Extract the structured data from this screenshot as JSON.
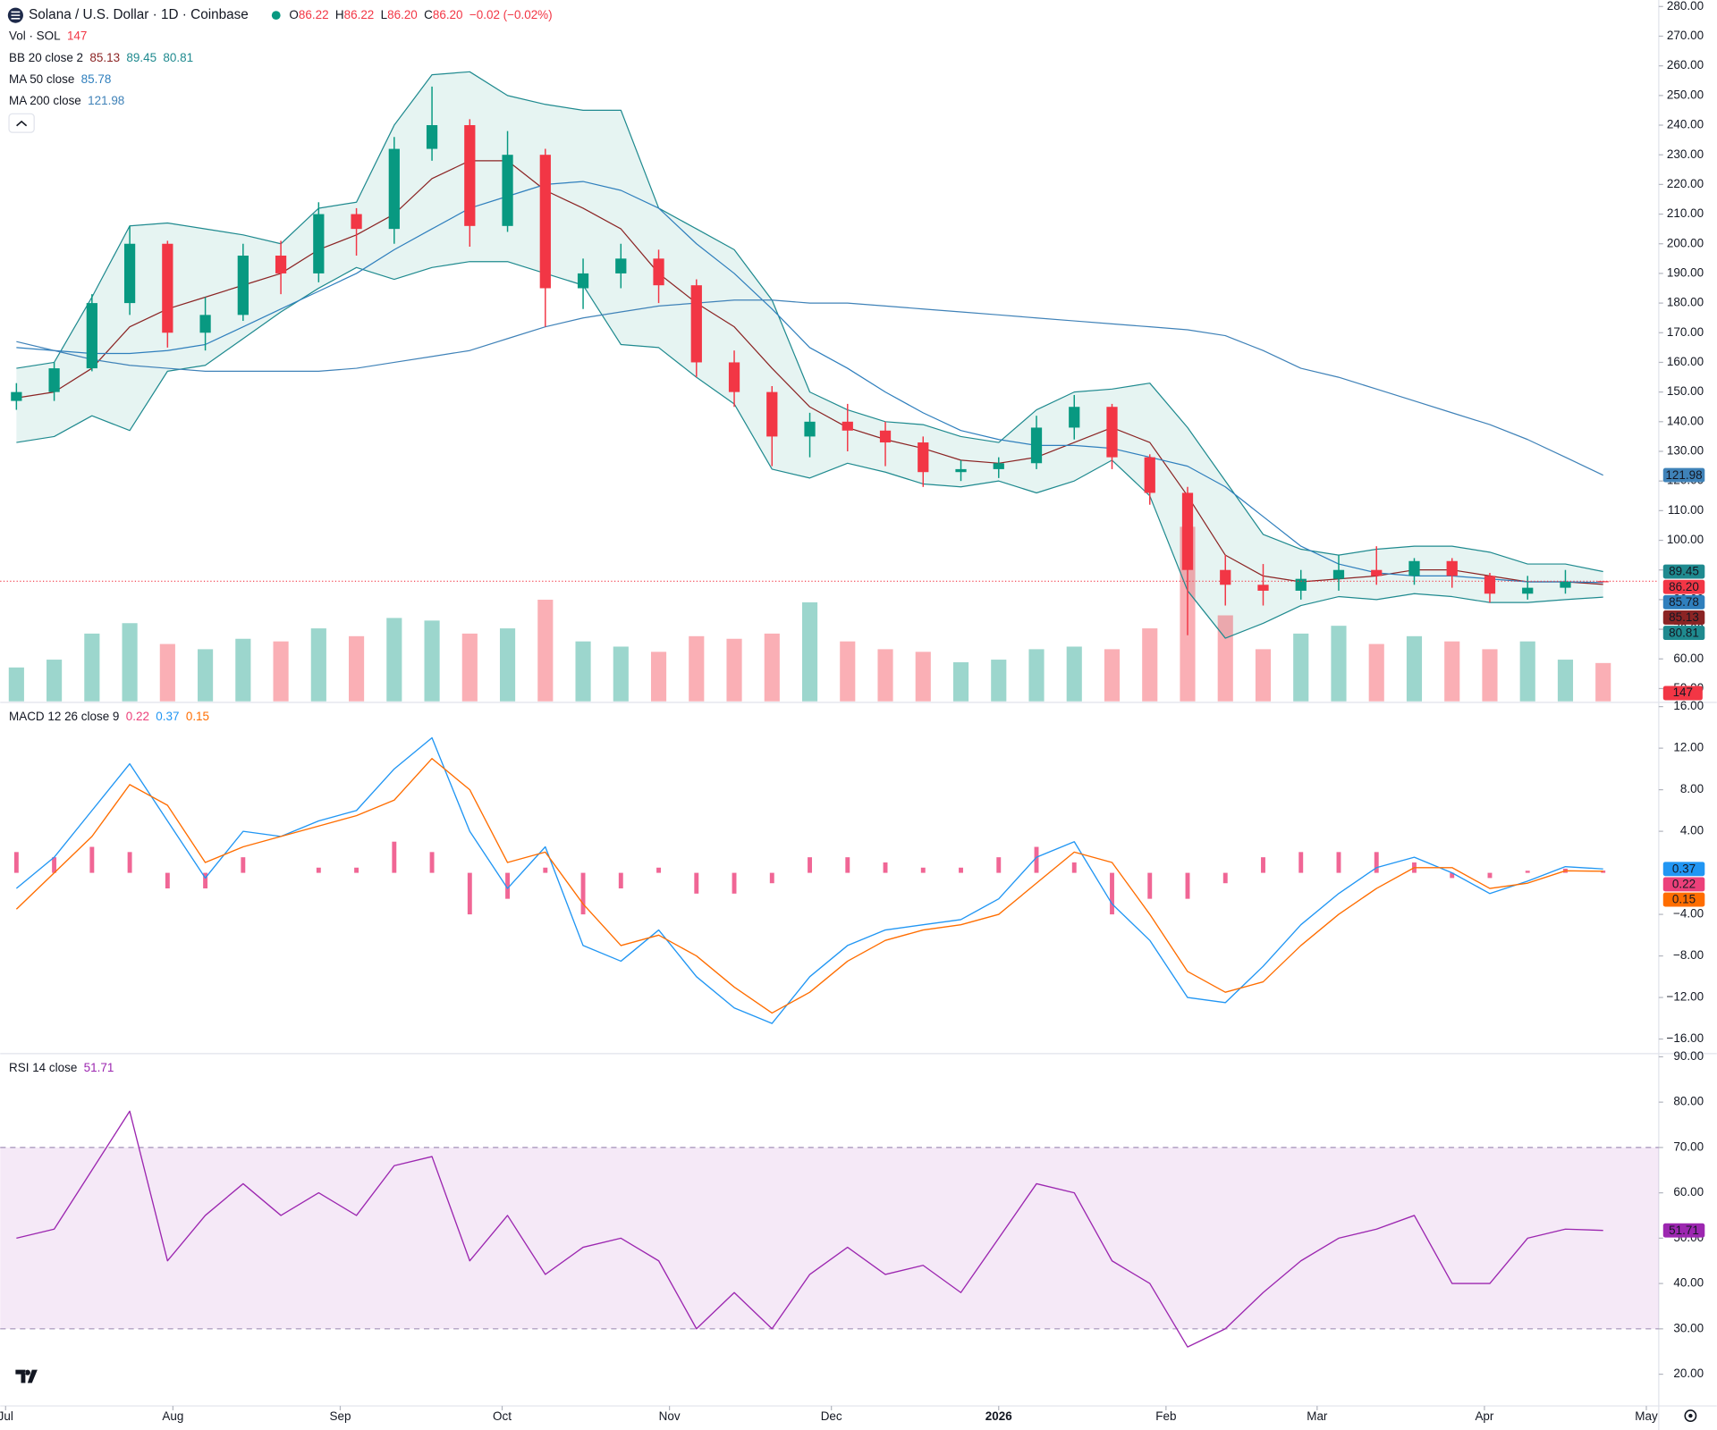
{
  "chart_data": {
    "type": "candlestick",
    "title": "Solana / U.S. Dollar · 1D · Coinbase",
    "ohlc_legend": [
      {
        "label": "O",
        "value": "86.22"
      },
      {
        "label": "H",
        "value": "86.22"
      },
      {
        "label": "L",
        "value": "86.20"
      },
      {
        "label": "C",
        "value": "86.20"
      }
    ],
    "change": "−0.02 (−0.02%)",
    "x": [
      2,
      9,
      16,
      23,
      30,
      37,
      44,
      51,
      58,
      65,
      72,
      79,
      86,
      93,
      100,
      107,
      114,
      121,
      128,
      135,
      142,
      149,
      156,
      163,
      170,
      177,
      184,
      191,
      198,
      205,
      212,
      219,
      226,
      233,
      240,
      247,
      254,
      261,
      268,
      275,
      282,
      289,
      296
    ],
    "xlim": [
      -1,
      306.3
    ],
    "xticks": [
      {
        "value": 0,
        "label": "Jul"
      },
      {
        "value": 31,
        "label": "Aug"
      },
      {
        "value": 62,
        "label": "Sep"
      },
      {
        "value": 92,
        "label": "Oct"
      },
      {
        "value": 123,
        "label": "Nov"
      },
      {
        "value": 153,
        "label": "Dec"
      },
      {
        "value": 184,
        "label": "2026"
      },
      {
        "value": 215,
        "label": "Feb"
      },
      {
        "value": 243,
        "label": "Mar"
      },
      {
        "value": 274,
        "label": "Apr"
      },
      {
        "value": 304,
        "label": "May"
      }
    ],
    "open": [
      147,
      150,
      158,
      180,
      200,
      170,
      176,
      196,
      190,
      210,
      205,
      232,
      240,
      206,
      230,
      185,
      190,
      195,
      186,
      160,
      150,
      135,
      140,
      137,
      133,
      123,
      124,
      126,
      138,
      145,
      128,
      116,
      90,
      85,
      83,
      87,
      90,
      88,
      93,
      88,
      82,
      84,
      86.22
    ],
    "high": [
      153,
      160,
      183,
      206,
      201,
      182,
      200,
      201,
      214,
      212,
      236,
      253,
      242,
      238,
      232,
      195,
      200,
      198,
      188,
      164,
      152,
      143,
      146,
      140,
      135,
      127,
      128,
      142,
      149,
      146,
      129,
      118,
      95,
      92,
      90,
      95,
      98,
      94,
      94,
      89,
      88,
      90,
      86.22
    ],
    "low": [
      144,
      147,
      157,
      176,
      165,
      164,
      174,
      183,
      187,
      196,
      200,
      228,
      199,
      204,
      172,
      178,
      185,
      180,
      155,
      145,
      125,
      128,
      130,
      125,
      118,
      120,
      121,
      124,
      134,
      124,
      112,
      68,
      78,
      78,
      80,
      83,
      85,
      85,
      84,
      79,
      80,
      82,
      86.2
    ],
    "close": [
      150,
      158,
      180,
      200,
      170,
      176,
      196,
      190,
      210,
      205,
      232,
      240,
      206,
      230,
      185,
      190,
      195,
      186,
      160,
      150,
      135,
      140,
      137,
      133,
      123,
      124,
      126,
      138,
      145,
      128,
      116,
      90,
      85,
      83,
      87,
      90,
      88,
      93,
      88,
      82,
      84,
      86,
      86.2
    ],
    "up_color": "#089981",
    "down_color": "#f23645",
    "ylim": [
      45.7,
      282.2
    ],
    "yticks": [
      {
        "value": 50,
        "label": "50.00"
      },
      {
        "value": 60,
        "label": "60.00"
      },
      {
        "value": 70,
        "label": "70.00"
      },
      {
        "value": 80,
        "label": "80.00"
      },
      {
        "value": 90,
        "label": "90.00"
      },
      {
        "value": 100,
        "label": "100.00"
      },
      {
        "value": 110,
        "label": "110.00"
      },
      {
        "value": 120,
        "label": "120.00"
      },
      {
        "value": 130,
        "label": "130.00"
      },
      {
        "value": 140,
        "label": "140.00"
      },
      {
        "value": 150,
        "label": "150.00"
      },
      {
        "value": 160,
        "label": "160.00"
      },
      {
        "value": 170,
        "label": "170.00"
      },
      {
        "value": 180,
        "label": "180.00"
      },
      {
        "value": 190,
        "label": "190.00"
      },
      {
        "value": 200,
        "label": "200.00"
      },
      {
        "value": 210,
        "label": "210.00"
      },
      {
        "value": 220,
        "label": "220.00"
      },
      {
        "value": 230,
        "label": "230.00"
      },
      {
        "value": 240,
        "label": "240.00"
      },
      {
        "value": 250,
        "label": "250.00"
      },
      {
        "value": 260,
        "label": "260.00"
      },
      {
        "value": 270,
        "label": "270.00"
      },
      {
        "value": 280,
        "label": "280.00"
      }
    ],
    "volume": {
      "name": "Vol · SOL",
      "label": "147",
      "ylim": [
        0,
        2692
      ],
      "values": [
        130,
        160,
        260,
        300,
        220,
        200,
        240,
        230,
        280,
        250,
        320,
        310,
        260,
        280,
        390,
        230,
        210,
        190,
        250,
        240,
        260,
        380,
        230,
        200,
        190,
        150,
        160,
        200,
        210,
        200,
        280,
        670,
        330,
        200,
        260,
        290,
        220,
        250,
        230,
        200,
        230,
        160,
        147
      ]
    },
    "indicators": [
      {
        "name": "BB 20 close 2",
        "fill": "#e6f4f2",
        "lines": [
          {
            "color": "#8b2424",
            "label": "85.13",
            "values": [
              148,
              150,
              158,
              172,
              178,
              182,
              186,
              190,
              198,
              203,
              210,
              222,
              228,
              228,
              218,
              212,
              205,
              190,
              180,
              172,
              158,
              145,
              138,
              134,
              131,
              127,
              126,
              128,
              133,
              138,
              133,
              115,
              95,
              88,
              86,
              87,
              88,
              90,
              90,
              88,
              86,
              86,
              85.13
            ]
          },
          {
            "color": "#1f8a8f",
            "label": "89.45",
            "values": [
              158,
              160,
              182,
              206,
              207,
              205,
              203,
              200,
              212,
              214,
              240,
              257,
              258,
              250,
              247,
              245,
              245,
              212,
              205,
              198,
              181,
              150,
              144,
              140,
              139,
              135,
              133,
              144,
              150,
              151,
              153,
              138,
              120,
              102,
              97,
              95,
              97,
              98,
              98,
              96,
              92,
              92,
              89.45
            ]
          },
          {
            "color": "#1f8a8f",
            "label": "80.81",
            "values": [
              133,
              135,
              142,
              137,
              157,
              159,
              168,
              177,
              185,
              192,
              188,
              192,
              194,
              194,
              190,
              186,
              166,
              165,
              155,
              146,
              124,
              121,
              126,
              123,
              119,
              118,
              120,
              116,
              120,
              127,
              115,
              83,
              67,
              72,
              78,
              81,
              80,
              82,
              81,
              79,
              79,
              80,
              80.81
            ]
          }
        ]
      },
      {
        "name": "MA 50 close",
        "lines": [
          {
            "color": "#2f7fbd",
            "label": "85.78",
            "values": [
              165,
              164,
              163,
              163,
              164,
              166,
              172,
              178,
              184,
              190,
              198,
              205,
              212,
              216,
              220,
              221,
              218,
              212,
              200,
              190,
              178,
              165,
              158,
              150,
              143,
              137,
              134,
              132,
              132,
              131,
              128,
              125,
              118,
              108,
              98,
              92,
              89,
              88,
              88,
              87,
              86,
              86,
              85.78
            ]
          }
        ]
      },
      {
        "name": "MA 200 close",
        "lines": [
          {
            "color": "#3f82b8",
            "label": "121.98",
            "values": [
              167,
              164,
              161,
              159,
              158,
              157,
              157,
              157,
              157,
              158,
              160,
              162,
              164,
              168,
              172,
              175,
              177,
              179,
              180,
              181,
              181,
              180,
              180,
              179,
              178,
              177,
              176,
              175,
              174,
              173,
              172,
              171,
              169,
              164,
              158,
              155,
              151,
              147,
              143,
              139,
              134,
              128,
              121.98
            ]
          }
        ]
      }
    ],
    "macd": {
      "name": "MACD 12 26 close 9",
      "ylim": [
        -17.3,
        16.3
      ],
      "yticks": [
        {
          "value": 16,
          "label": "16.00"
        },
        {
          "value": 12,
          "label": "12.00"
        },
        {
          "value": 8,
          "label": "8.00"
        },
        {
          "value": 4,
          "label": "4.00"
        },
        {
          "value": -4,
          "label": "−4.00"
        },
        {
          "value": -8,
          "label": "−8.00"
        },
        {
          "value": -12,
          "label": "−12.00"
        },
        {
          "value": -16,
          "label": "−16.00"
        }
      ],
      "histogram": {
        "color": "#ec407a",
        "label": "0.22",
        "values": [
          2,
          1.5,
          2.5,
          2,
          -1.5,
          -1.5,
          1.5,
          0,
          0.5,
          0.5,
          3,
          2,
          -4,
          -2.5,
          0.5,
          -4,
          -1.5,
          0.5,
          -2,
          -2,
          -1,
          1.5,
          1.5,
          1,
          0.5,
          0.5,
          1.5,
          2.5,
          1,
          -4,
          -2.5,
          -2.5,
          -1,
          1.5,
          2,
          2,
          2,
          1,
          -0.5,
          -0.5,
          0.2,
          0.4,
          0.22
        ]
      },
      "lines": [
        {
          "color": "#2196f3",
          "label": "0.37",
          "values": [
            -1.5,
            1.5,
            6,
            10.5,
            5,
            -0.5,
            4,
            3.5,
            5,
            6,
            10,
            13,
            4,
            -1.5,
            2.5,
            -7,
            -8.5,
            -5.5,
            -10,
            -13,
            -14.5,
            -10,
            -7,
            -5.5,
            -5,
            -4.5,
            -2.5,
            1.5,
            3,
            -3,
            -6.5,
            -12,
            -12.5,
            -9,
            -5,
            -2,
            0.5,
            1.5,
            0,
            -2,
            -0.8,
            0.6,
            0.37
          ]
        },
        {
          "color": "#ff6d00",
          "label": "0.15",
          "values": [
            -3.5,
            0,
            3.5,
            8.5,
            6.5,
            1,
            2.5,
            3.5,
            4.5,
            5.5,
            7,
            11,
            8,
            1,
            2,
            -3,
            -7,
            -6,
            -8,
            -11,
            -13.5,
            -11.5,
            -8.5,
            -6.5,
            -5.5,
            -5,
            -4,
            -1,
            2,
            1,
            -4,
            -9.5,
            -11.5,
            -10.5,
            -7,
            -4,
            -1.5,
            0.5,
            0.5,
            -1.5,
            -1,
            0.2,
            0.15
          ]
        }
      ]
    },
    "rsi": {
      "name": "RSI 14 close",
      "color": "#9c27b0",
      "label": "51.71",
      "band": [
        30,
        70
      ],
      "ylim": [
        13,
        90.7
      ],
      "yticks": [
        {
          "value": 20,
          "label": "20.00"
        },
        {
          "value": 30,
          "label": "30.00"
        },
        {
          "value": 40,
          "label": "40.00"
        },
        {
          "value": 50,
          "label": "50.00"
        },
        {
          "value": 60,
          "label": "60.00"
        },
        {
          "value": 70,
          "label": "70.00"
        },
        {
          "value": 80,
          "label": "80.00"
        },
        {
          "value": 90,
          "label": "90.00"
        }
      ],
      "values": [
        50,
        52,
        65,
        78,
        45,
        55,
        62,
        55,
        60,
        55,
        66,
        68,
        45,
        55,
        42,
        48,
        50,
        45,
        30,
        38,
        30,
        42,
        48,
        42,
        44,
        38,
        50,
        62,
        60,
        45,
        40,
        26,
        30,
        38,
        45,
        50,
        52,
        55,
        40,
        40,
        50,
        52,
        51.71
      ]
    }
  }
}
